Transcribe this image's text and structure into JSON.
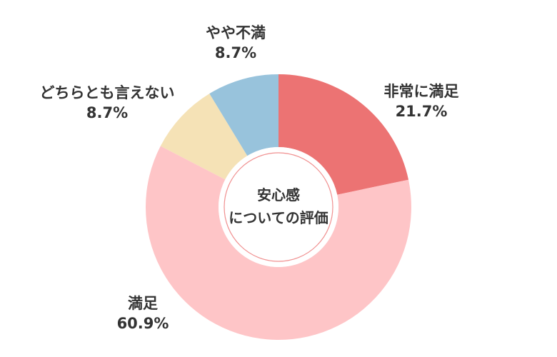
{
  "chart_data": {
    "type": "pie",
    "style": "donut",
    "center_label": {
      "line1": "安心感",
      "line2": "についての評価"
    },
    "slices": [
      {
        "label": "非常に満足",
        "value_label": "21.7%",
        "value": 21.7,
        "color": "#ec7373"
      },
      {
        "label": "満足",
        "value_label": "60.9%",
        "value": 60.9,
        "color": "#fec5c7"
      },
      {
        "label": "どちらとも言えない",
        "value_label": "8.7%",
        "value": 8.7,
        "color": "#f5e2b6"
      },
      {
        "label": "やや不満",
        "value_label": "8.7%",
        "value": 8.7,
        "color": "#98c3dc"
      }
    ],
    "legend": "none"
  }
}
